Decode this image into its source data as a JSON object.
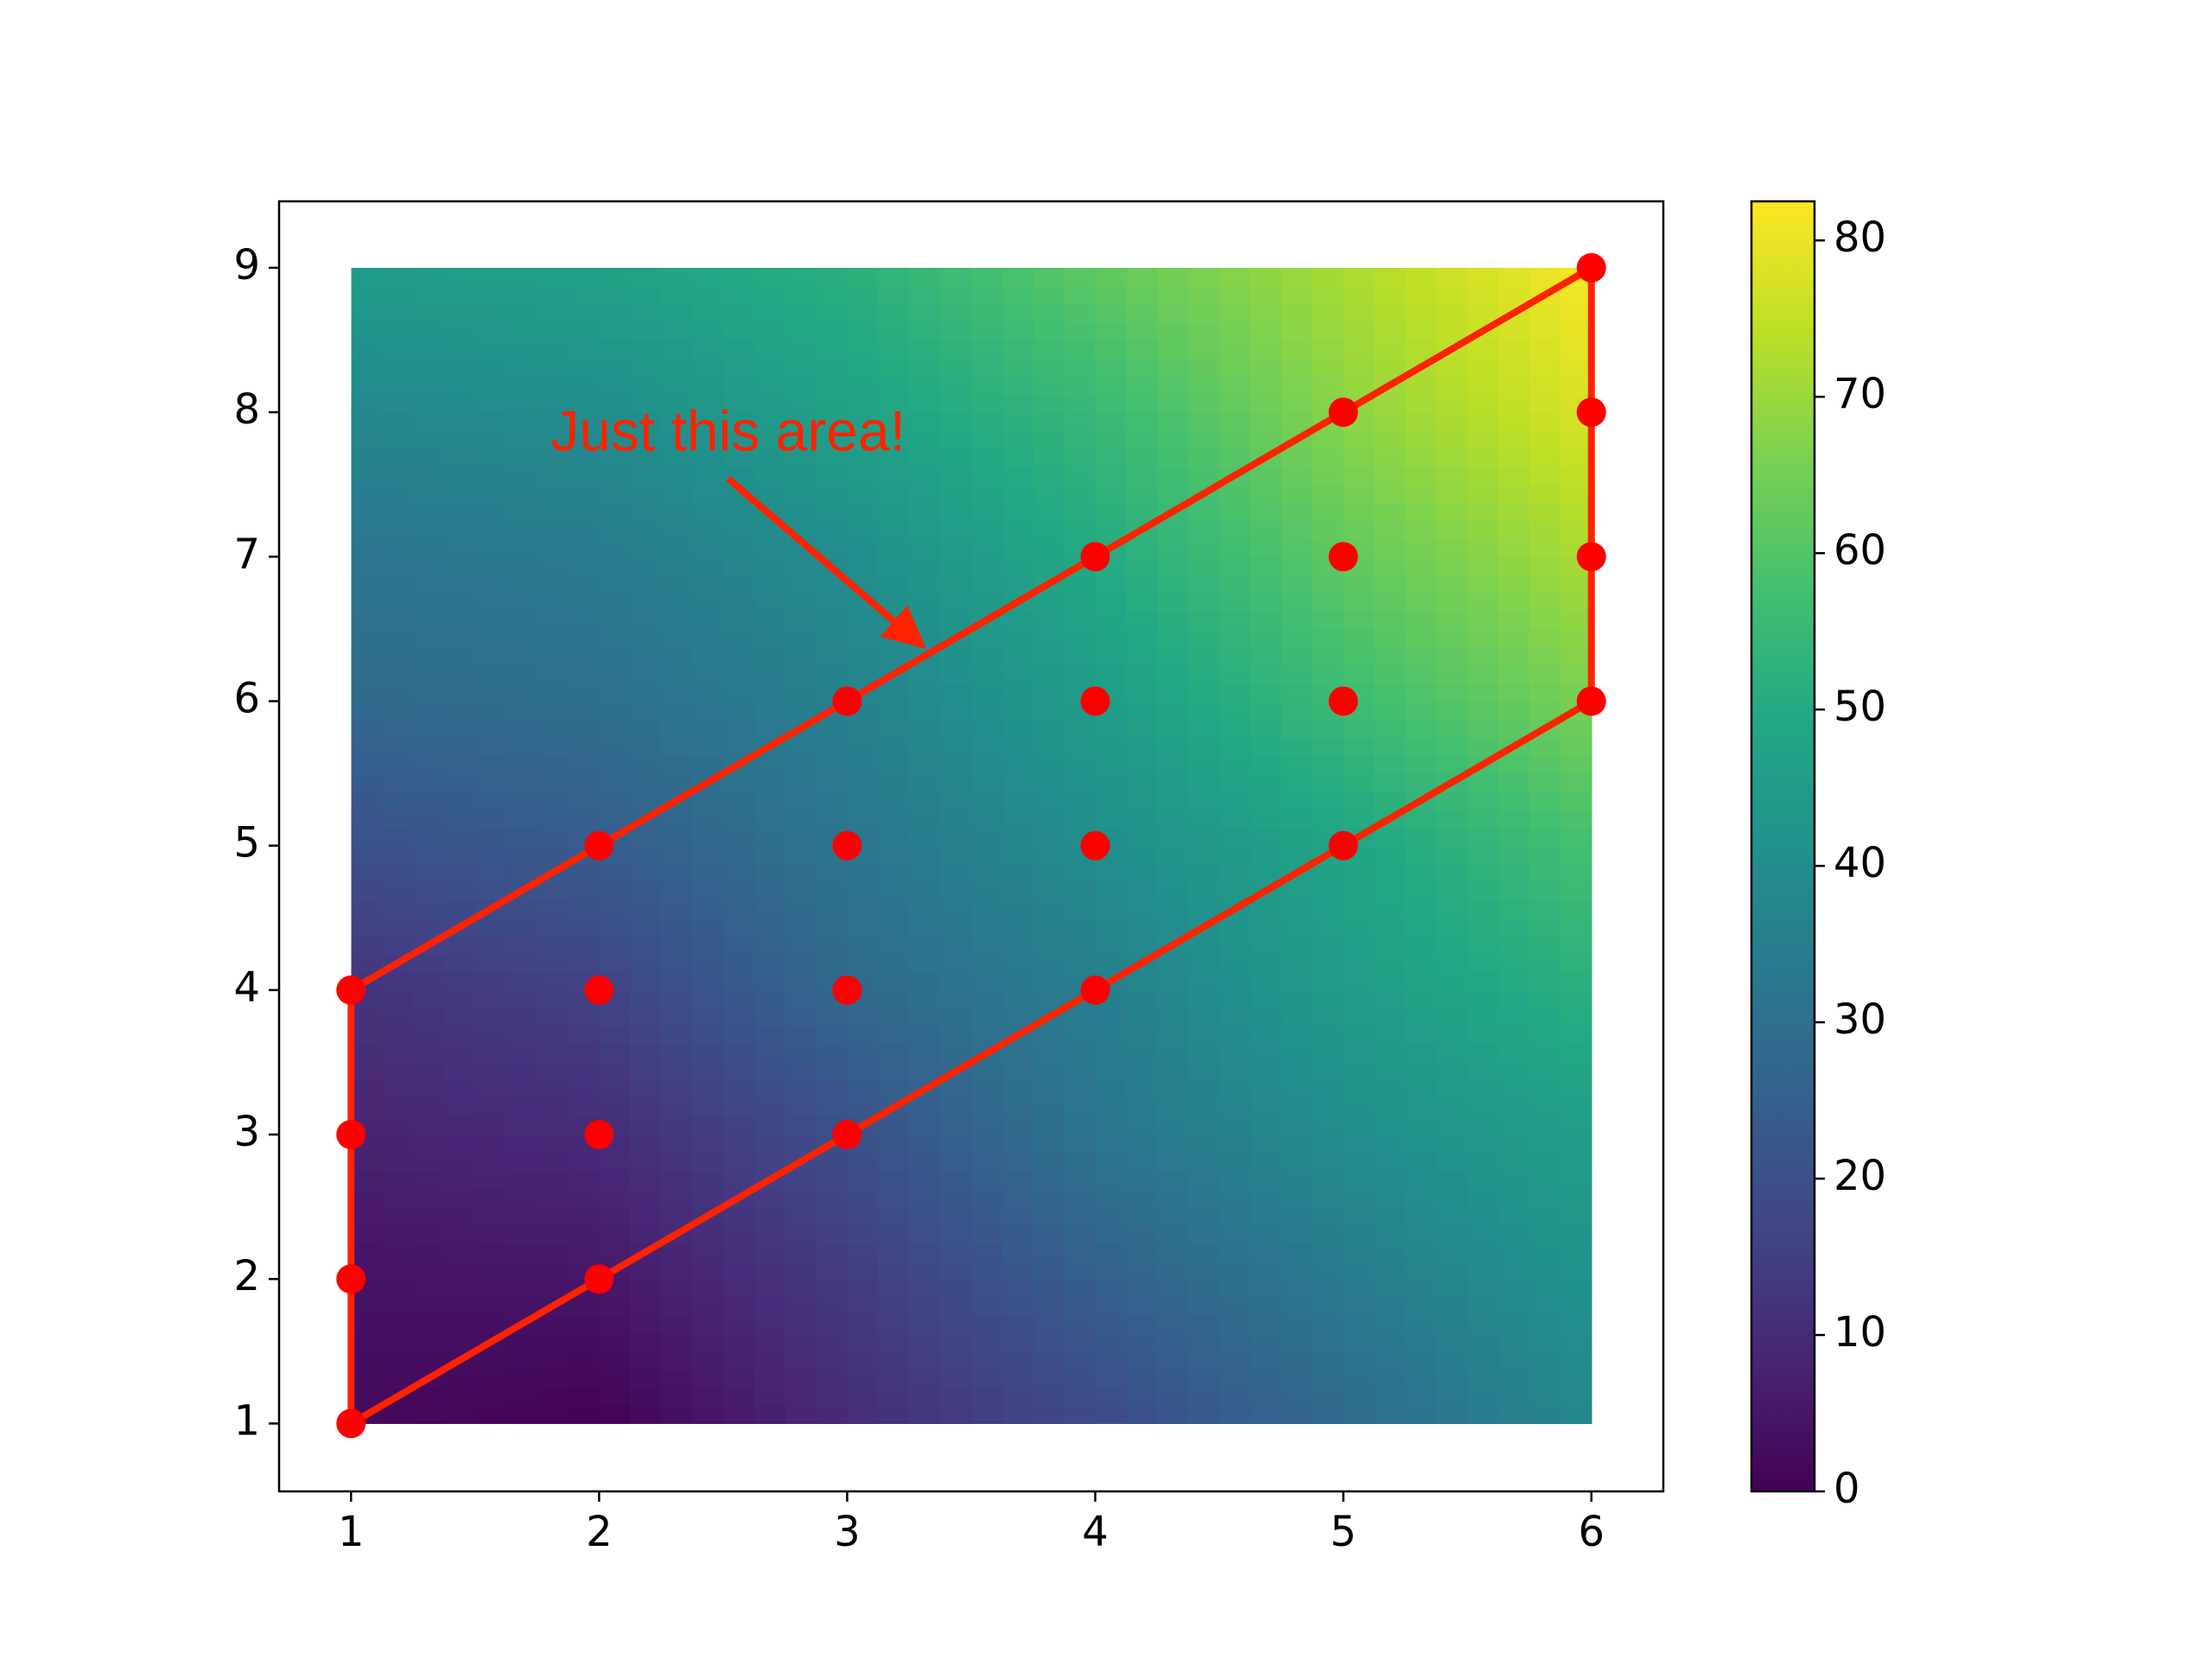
{
  "chart_data": {
    "type": "heatmap",
    "xlim": [
      0.71,
      6.29
    ],
    "ylim": [
      0.53,
      9.46
    ],
    "xticks": [
      1,
      2,
      3,
      4,
      5,
      6
    ],
    "yticks": [
      1,
      2,
      3,
      4,
      5,
      6,
      7,
      8,
      9
    ],
    "heatmap": {
      "x": [
        1,
        2,
        3,
        4,
        5,
        6
      ],
      "y": [
        1,
        2,
        3,
        4,
        5,
        6,
        7,
        8,
        9
      ],
      "z": [
        [
          2,
          0,
          10,
          18,
          28,
          38
        ],
        [
          4,
          5,
          14,
          25,
          34,
          42
        ],
        [
          8,
          10,
          20,
          32,
          40,
          46
        ],
        [
          12,
          16,
          28,
          35,
          45,
          52
        ],
        [
          20,
          24,
          32,
          40,
          48,
          58
        ],
        [
          28,
          30,
          36,
          45,
          56,
          66
        ],
        [
          32,
          34,
          40,
          50,
          62,
          72
        ],
        [
          38,
          40,
          47,
          55,
          68,
          78
        ],
        [
          45,
          47,
          52,
          62,
          72,
          82
        ]
      ],
      "colormap": "viridis",
      "clim": [
        0,
        82.5
      ],
      "colorbar_ticks": [
        0,
        10,
        20,
        30,
        40,
        50,
        60,
        70,
        80
      ]
    },
    "points": {
      "color": "#ff0000",
      "x": [
        1,
        1,
        1,
        1,
        2,
        2,
        2,
        2,
        3,
        3,
        3,
        3,
        4,
        4,
        4,
        4,
        5,
        5,
        5,
        5,
        6,
        6,
        6,
        6
      ],
      "y": [
        1,
        2,
        3,
        4,
        2,
        3,
        4,
        5,
        3,
        4,
        5,
        6,
        4,
        5,
        6,
        7,
        5,
        6,
        7,
        8,
        6,
        7,
        8,
        9
      ]
    },
    "outline": {
      "color": "#ff2200",
      "x": [
        1,
        6,
        6,
        1,
        1
      ],
      "y": [
        1,
        6,
        9,
        4,
        1
      ]
    },
    "annotation": {
      "text": "Just this area!",
      "color": "#ff2200",
      "xy": [
        3.32,
        6.36
      ],
      "xytext": [
        2.52,
        7.84
      ]
    }
  }
}
